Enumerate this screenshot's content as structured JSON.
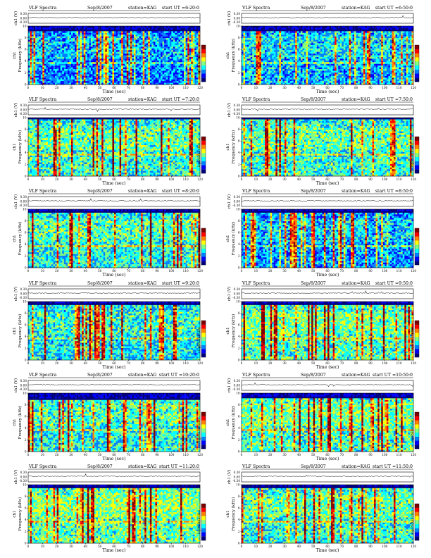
{
  "colors": {
    "colormap": [
      "#00007f",
      "#0000ff",
      "#0080ff",
      "#00ffff",
      "#80ff80",
      "#ffff00",
      "#ff8000",
      "#ff0000",
      "#800000"
    ],
    "background": "#ffffff",
    "axis": "#000000"
  },
  "common": {
    "header_left": "VLF Spectra",
    "station": "station=KAG",
    "x_label": "Time (sec)",
    "y_label_channel": "ch1",
    "y_label_freq": "Frequency (kHz)",
    "y_label_top": "ch1 (V)",
    "colorbar_label": "log(PSD)(V²/Hz)"
  },
  "chart_data": [
    {
      "type": "heatmap",
      "title": "VLF Spectra",
      "date": "Sep/8/2007",
      "station": "station=KAG",
      "start_label": "start  UT  =6:20:0",
      "xlabel": "Time (sec)",
      "ylabel": "Frequency (kHz)",
      "xlim": [
        0,
        120
      ],
      "ylim": [
        0,
        10
      ],
      "x_ticks": [
        "0",
        "10",
        "20",
        "30",
        "40",
        "50",
        "60",
        "70",
        "80",
        "90",
        "100",
        "110",
        "120"
      ],
      "y_ticks": [
        "0",
        "2",
        "4",
        "6",
        "8",
        "10"
      ],
      "top_trace": {
        "ylabel": "ch1 (V)",
        "ticks": [
          "0.30",
          "0.00",
          "-0.30"
        ]
      },
      "band_top_khz": 9.4,
      "background_level": 0.28,
      "vertical_bursts": 28
    },
    {
      "type": "heatmap",
      "title": "VLF Spectra",
      "date": "Sep/8/2007",
      "station": "station=KAG",
      "start_label": "start  UT  =6:50:0",
      "xlabel": "Time (sec)",
      "ylabel": "Frequency (kHz)",
      "xlim": [
        0,
        120
      ],
      "ylim": [
        0,
        10
      ],
      "x_ticks": [
        "0",
        "10",
        "20",
        "30",
        "40",
        "50",
        "60",
        "70",
        "80",
        "90",
        "100",
        "110",
        "120"
      ],
      "y_ticks": [
        "0",
        "2",
        "4",
        "6",
        "8",
        "10"
      ],
      "top_trace": {
        "ylabel": "ch1 (V)",
        "ticks": [
          "0.30",
          "0.00",
          "-0.30"
        ]
      },
      "band_top_khz": 9.4,
      "background_level": 0.32,
      "vertical_bursts": 22
    },
    {
      "type": "heatmap",
      "title": "VLF Spectra",
      "date": "Sep/8/2007",
      "station": "station=KAG",
      "start_label": "start  UT  =7:20:0",
      "xlabel": "Time (sec)",
      "ylabel": "Frequency (kHz)",
      "xlim": [
        0,
        120
      ],
      "ylim": [
        0,
        10
      ],
      "x_ticks": [
        "0",
        "10",
        "20",
        "30",
        "40",
        "50",
        "60",
        "70",
        "80",
        "90",
        "100",
        "110",
        "120"
      ],
      "y_ticks": [
        "0",
        "2",
        "4",
        "6",
        "8",
        "10"
      ],
      "top_trace": {
        "ylabel": "ch1 (V)",
        "ticks": [
          "0.30",
          "0.00",
          "-0.30"
        ]
      },
      "band_top_khz": 10,
      "background_level": 0.42,
      "vertical_bursts": 18
    },
    {
      "type": "heatmap",
      "title": "VLF Spectra",
      "date": "Sep/8/2007",
      "station": "station=KAG",
      "start_label": "start  UT  =7:50:0",
      "xlabel": "Time (sec)",
      "ylabel": "Frequency (kHz)",
      "xlim": [
        0,
        120
      ],
      "ylim": [
        0,
        10
      ],
      "x_ticks": [
        "0",
        "10",
        "20",
        "30",
        "40",
        "50",
        "60",
        "70",
        "80",
        "90",
        "100",
        "110",
        "120"
      ],
      "y_ticks": [
        "0",
        "2",
        "4",
        "6",
        "8",
        "10"
      ],
      "top_trace": {
        "ylabel": "ch1 (V)",
        "ticks": [
          "0.30",
          "0.00",
          "-0.30"
        ]
      },
      "band_top_khz": 10,
      "background_level": 0.42,
      "vertical_bursts": 20
    },
    {
      "type": "heatmap",
      "title": "VLF Spectra",
      "date": "Sep/8/2007",
      "station": "station=KAG",
      "start_label": "start  UT  =8:20:0",
      "xlabel": "Time (sec)",
      "ylabel": "Frequency (kHz)",
      "xlim": [
        0,
        120
      ],
      "ylim": [
        0,
        10
      ],
      "x_ticks": [
        "0",
        "10",
        "20",
        "30",
        "40",
        "50",
        "60",
        "70",
        "80",
        "90",
        "100",
        "110",
        "120"
      ],
      "y_ticks": [
        "0",
        "2",
        "4",
        "6",
        "8",
        "10"
      ],
      "top_trace": {
        "ylabel": "ch1 (V)",
        "ticks": [
          "0.30",
          "0.00",
          "-0.30"
        ]
      },
      "band_top_khz": 9.8,
      "background_level": 0.4,
      "vertical_bursts": 20
    },
    {
      "type": "heatmap",
      "title": "VLF Spectra",
      "date": "Sep/8/2007",
      "station": "station=KAG",
      "start_label": "start  UT  =8:50:0",
      "xlabel": "Time (sec)",
      "ylabel": "Frequency (kHz)",
      "xlim": [
        0,
        120
      ],
      "ylim": [
        0,
        10
      ],
      "x_ticks": [
        "0",
        "10",
        "20",
        "30",
        "40",
        "50",
        "60",
        "70",
        "80",
        "90",
        "100",
        "110",
        "120"
      ],
      "y_ticks": [
        "0",
        "2",
        "4",
        "6",
        "8",
        "10"
      ],
      "top_trace": {
        "ylabel": "ch1 (V)",
        "ticks": [
          "0.30",
          "0.00",
          "-0.30"
        ]
      },
      "band_top_khz": 9.6,
      "background_level": 0.3,
      "vertical_bursts": 30
    },
    {
      "type": "heatmap",
      "title": "VLF Spectra",
      "date": "Sep/8/2007",
      "station": "station=KAG",
      "start_label": "start  UT  =9:20:0",
      "xlabel": "Time (sec)",
      "ylabel": "Frequency (kHz)",
      "xlim": [
        0,
        120
      ],
      "ylim": [
        0,
        10
      ],
      "x_ticks": [
        "0",
        "10",
        "20",
        "30",
        "40",
        "50",
        "60",
        "70",
        "80",
        "90",
        "100",
        "110",
        "120"
      ],
      "y_ticks": [
        "0",
        "2",
        "4",
        "6",
        "8",
        "10"
      ],
      "top_trace": {
        "ylabel": "ch1 (V)",
        "ticks": [
          "0.30",
          "0.00",
          "-0.30"
        ]
      },
      "band_top_khz": 9.6,
      "background_level": 0.38,
      "vertical_bursts": 24
    },
    {
      "type": "heatmap",
      "title": "VLF Spectra",
      "date": "Sep/8/2007",
      "station": "station=KAG",
      "start_label": "start  UT  =9:50:0",
      "xlabel": "Time (sec)",
      "ylabel": "Frequency (kHz)",
      "xlim": [
        0,
        120
      ],
      "ylim": [
        0,
        10
      ],
      "x_ticks": [
        "0",
        "10",
        "20",
        "30",
        "40",
        "50",
        "60",
        "70",
        "80",
        "90",
        "100",
        "110",
        "120"
      ],
      "y_ticks": [
        "0",
        "2",
        "4",
        "6",
        "8",
        "10"
      ],
      "top_trace": {
        "ylabel": "ch1 (V)",
        "ticks": [
          "0.30",
          "0.00",
          "-0.30"
        ]
      },
      "band_top_khz": 9.6,
      "background_level": 0.44,
      "vertical_bursts": 24
    },
    {
      "type": "heatmap",
      "title": "VLF Spectra",
      "date": "Sep/8/2007",
      "station": "station=KAG",
      "start_label": "start  UT  =10:20:0",
      "xlabel": "Time (sec)",
      "ylabel": "Frequency (kHz)",
      "xlim": [
        0,
        120
      ],
      "ylim": [
        0,
        10
      ],
      "x_ticks": [
        "0",
        "10",
        "20",
        "30",
        "40",
        "50",
        "60",
        "70",
        "80",
        "90",
        "100",
        "110",
        "120"
      ],
      "y_ticks": [
        "0",
        "2",
        "4",
        "6",
        "8",
        "10"
      ],
      "top_trace": {
        "ylabel": "ch1 (V)",
        "ticks": [
          "0.30",
          "0.00",
          "-0.30"
        ]
      },
      "band_top_khz": 9.2,
      "background_level": 0.4,
      "vertical_bursts": 30
    },
    {
      "type": "heatmap",
      "title": "VLF Spectra",
      "date": "Sep/8/2007",
      "station": "station=KAG",
      "start_label": "start  UT  =10:50:0",
      "xlabel": "Time (sec)",
      "ylabel": "Frequency (kHz)",
      "xlim": [
        0,
        120
      ],
      "ylim": [
        0,
        10
      ],
      "x_ticks": [
        "0",
        "10",
        "20",
        "30",
        "40",
        "50",
        "60",
        "70",
        "80",
        "90",
        "100",
        "110",
        "120"
      ],
      "y_ticks": [
        "0",
        "2",
        "4",
        "6",
        "8",
        "10"
      ],
      "top_trace": {
        "ylabel": "ch1 (V)",
        "ticks": [
          "0.30",
          "0.00",
          "-0.30"
        ]
      },
      "band_top_khz": 9.4,
      "background_level": 0.44,
      "vertical_bursts": 26
    },
    {
      "type": "heatmap",
      "title": "VLF Spectra",
      "date": "Sep/8/2007",
      "station": "station=KAG",
      "start_label": "start  UT  =11:20:0",
      "xlabel": "Time (sec)",
      "ylabel": "Frequency (kHz)",
      "xlim": [
        0,
        120
      ],
      "ylim": [
        0,
        10
      ],
      "x_ticks": [
        "0",
        "10",
        "20",
        "30",
        "40",
        "50",
        "60",
        "70",
        "80",
        "90",
        "100",
        "110",
        "120"
      ],
      "y_ticks": [
        "0",
        "2",
        "4",
        "6",
        "8",
        "10"
      ],
      "top_trace": {
        "ylabel": "ch1 (V)",
        "ticks": [
          "0.30",
          "0.00",
          "-0.30"
        ]
      },
      "band_top_khz": 9.6,
      "background_level": 0.46,
      "vertical_bursts": 22
    },
    {
      "type": "heatmap",
      "title": "VLF Spectra",
      "date": "Sep/8/2007",
      "station": "station=KAG",
      "start_label": "start  UT  =11:50:0",
      "xlabel": "Time (sec)",
      "ylabel": "Frequency (kHz)",
      "xlim": [
        0,
        120
      ],
      "ylim": [
        0,
        10
      ],
      "x_ticks": [
        "0",
        "10",
        "20",
        "30",
        "40",
        "50",
        "60",
        "70",
        "80",
        "90",
        "100",
        "110",
        "120"
      ],
      "y_ticks": [
        "0",
        "2",
        "4",
        "6",
        "8",
        "10"
      ],
      "top_trace": {
        "ylabel": "ch1 (V)",
        "ticks": [
          "0.30",
          "0.00",
          "-0.30"
        ]
      },
      "band_top_khz": 9.6,
      "background_level": 0.42,
      "vertical_bursts": 24
    }
  ]
}
